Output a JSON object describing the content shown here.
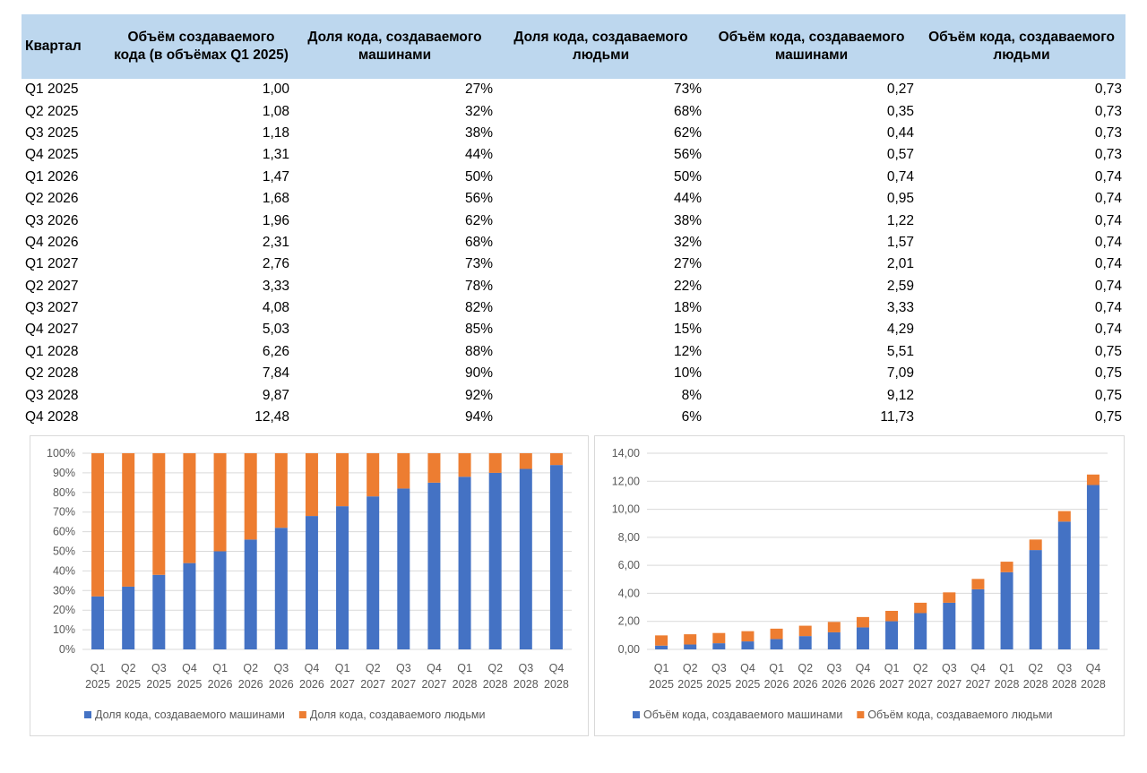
{
  "table": {
    "headers": [
      "Квартал",
      "Объём создаваемого кода (в объёмах Q1 2025)",
      "Доля кода, создаваемого машинами",
      "Доля кода, создаваемого людьми",
      "Объём кода, создаваемого машинами",
      "Объём кода, создаваемого людьми"
    ],
    "rows": [
      [
        "Q1 2025",
        "1,00",
        "27%",
        "73%",
        "0,27",
        "0,73"
      ],
      [
        "Q2 2025",
        "1,08",
        "32%",
        "68%",
        "0,35",
        "0,73"
      ],
      [
        "Q3 2025",
        "1,18",
        "38%",
        "62%",
        "0,44",
        "0,73"
      ],
      [
        "Q4 2025",
        "1,31",
        "44%",
        "56%",
        "0,57",
        "0,73"
      ],
      [
        "Q1 2026",
        "1,47",
        "50%",
        "50%",
        "0,74",
        "0,74"
      ],
      [
        "Q2 2026",
        "1,68",
        "56%",
        "44%",
        "0,95",
        "0,74"
      ],
      [
        "Q3 2026",
        "1,96",
        "62%",
        "38%",
        "1,22",
        "0,74"
      ],
      [
        "Q4 2026",
        "2,31",
        "68%",
        "32%",
        "1,57",
        "0,74"
      ],
      [
        "Q1 2027",
        "2,76",
        "73%",
        "27%",
        "2,01",
        "0,74"
      ],
      [
        "Q2 2027",
        "3,33",
        "78%",
        "22%",
        "2,59",
        "0,74"
      ],
      [
        "Q3 2027",
        "4,08",
        "82%",
        "18%",
        "3,33",
        "0,74"
      ],
      [
        "Q4 2027",
        "5,03",
        "85%",
        "15%",
        "4,29",
        "0,74"
      ],
      [
        "Q1 2028",
        "6,26",
        "88%",
        "12%",
        "5,51",
        "0,75"
      ],
      [
        "Q2 2028",
        "7,84",
        "90%",
        "10%",
        "7,09",
        "0,75"
      ],
      [
        "Q3 2028",
        "9,87",
        "92%",
        "8%",
        "9,12",
        "0,75"
      ],
      [
        "Q4 2028",
        "12,48",
        "94%",
        "6%",
        "11,73",
        "0,75"
      ]
    ]
  },
  "chart_data": [
    {
      "type": "bar",
      "stacked": "percent",
      "categories": [
        [
          "Q1",
          "2025"
        ],
        [
          "Q2",
          "2025"
        ],
        [
          "Q3",
          "2025"
        ],
        [
          "Q4",
          "2025"
        ],
        [
          "Q1",
          "2026"
        ],
        [
          "Q2",
          "2026"
        ],
        [
          "Q3",
          "2026"
        ],
        [
          "Q4",
          "2026"
        ],
        [
          "Q1",
          "2027"
        ],
        [
          "Q2",
          "2027"
        ],
        [
          "Q3",
          "2027"
        ],
        [
          "Q4",
          "2027"
        ],
        [
          "Q1",
          "2028"
        ],
        [
          "Q2",
          "2028"
        ],
        [
          "Q3",
          "2028"
        ],
        [
          "Q4",
          "2028"
        ]
      ],
      "series": [
        {
          "name": "Доля кода, создаваемого машинами",
          "color": "#4472c4",
          "values": [
            27,
            32,
            38,
            44,
            50,
            56,
            62,
            68,
            73,
            78,
            82,
            85,
            88,
            90,
            92,
            94
          ]
        },
        {
          "name": "Доля кода, создаваемого людьми",
          "color": "#ed7d31",
          "values": [
            73,
            68,
            62,
            56,
            50,
            44,
            38,
            32,
            27,
            22,
            18,
            15,
            12,
            10,
            8,
            6
          ]
        }
      ],
      "ylim": [
        0,
        100
      ],
      "yticks": [
        "0%",
        "10%",
        "20%",
        "30%",
        "40%",
        "50%",
        "60%",
        "70%",
        "80%",
        "90%",
        "100%"
      ],
      "grid": true,
      "legend": "bottom"
    },
    {
      "type": "bar",
      "stacked": "normal",
      "categories": [
        [
          "Q1",
          "2025"
        ],
        [
          "Q2",
          "2025"
        ],
        [
          "Q3",
          "2025"
        ],
        [
          "Q4",
          "2025"
        ],
        [
          "Q1",
          "2026"
        ],
        [
          "Q2",
          "2026"
        ],
        [
          "Q3",
          "2026"
        ],
        [
          "Q4",
          "2026"
        ],
        [
          "Q1",
          "2027"
        ],
        [
          "Q2",
          "2027"
        ],
        [
          "Q3",
          "2027"
        ],
        [
          "Q4",
          "2027"
        ],
        [
          "Q1",
          "2028"
        ],
        [
          "Q2",
          "2028"
        ],
        [
          "Q3",
          "2028"
        ],
        [
          "Q4",
          "2028"
        ]
      ],
      "series": [
        {
          "name": "Объём кода, создаваемого машинами",
          "color": "#4472c4",
          "values": [
            0.27,
            0.35,
            0.44,
            0.57,
            0.74,
            0.95,
            1.22,
            1.57,
            2.01,
            2.59,
            3.33,
            4.29,
            5.51,
            7.09,
            9.12,
            11.73
          ]
        },
        {
          "name": "Объём кода, создаваемого людьми",
          "color": "#ed7d31",
          "values": [
            0.73,
            0.73,
            0.73,
            0.73,
            0.74,
            0.74,
            0.74,
            0.74,
            0.74,
            0.74,
            0.74,
            0.74,
            0.75,
            0.75,
            0.75,
            0.75
          ]
        }
      ],
      "ylim": [
        0,
        14
      ],
      "yticks": [
        "0,00",
        "2,00",
        "4,00",
        "6,00",
        "8,00",
        "10,00",
        "12,00",
        "14,00"
      ],
      "grid": true,
      "legend": "bottom"
    }
  ]
}
